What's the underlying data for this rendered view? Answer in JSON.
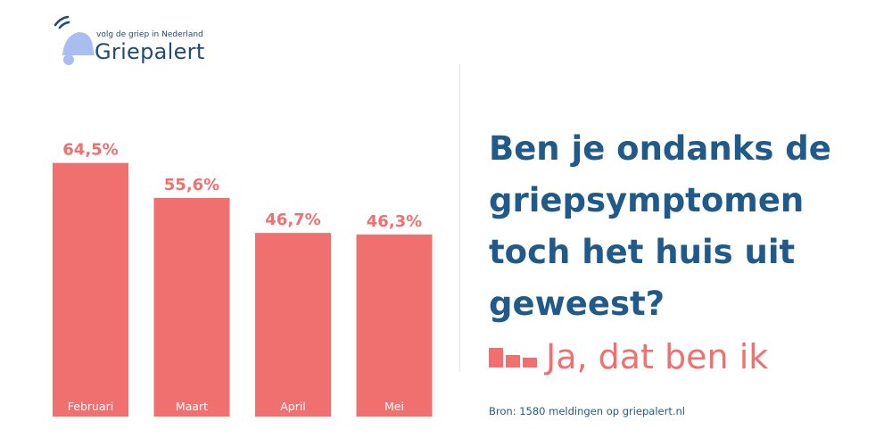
{
  "brand": {
    "name": "Griepalert",
    "tagline": "volg de griep in Nederland",
    "logo_icon": "bell-icon",
    "colors": {
      "navy": "#1f4a7a",
      "light_blue": "#a9bdf0"
    }
  },
  "question": "Ben je ondanks de griepsymptomen toch het huis uit geweest?",
  "legend": {
    "label": "Ja, dat ben ik",
    "icon": "bar-chart-icon",
    "color": "#f07070"
  },
  "source": "Bron: 1580 meldingen op griepalert.nl",
  "chart_data": {
    "type": "bar",
    "categories": [
      "Februari",
      "Maart",
      "April",
      "Mei"
    ],
    "values": [
      64.5,
      55.6,
      46.7,
      46.3
    ],
    "value_labels": [
      "64,5%",
      "55,6%",
      "46,7%",
      "46,3%"
    ],
    "series": [
      {
        "name": "Ja, dat ben ik",
        "values": [
          64.5,
          55.6,
          46.7,
          46.3
        ]
      }
    ],
    "title": "Ben je ondanks de griepsymptomen toch het huis uit geweest?",
    "xlabel": "",
    "ylabel": "",
    "ylim": [
      0,
      100
    ],
    "grid": false,
    "legend_position": "right",
    "bar_color": "#f07070"
  }
}
